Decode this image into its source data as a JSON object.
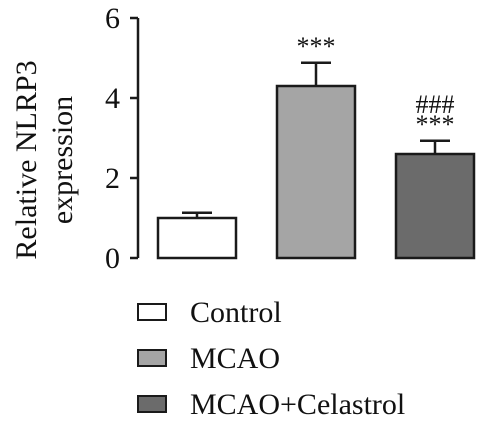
{
  "chart_data": {
    "type": "bar",
    "title": "",
    "ylabel": [
      "Relative NLRP3",
      "expression"
    ],
    "xlabel": "",
    "ylim": [
      0,
      6
    ],
    "yticks": [
      0,
      2,
      4,
      6
    ],
    "grid": false,
    "legend_position": "bottom",
    "series": [
      {
        "name": "Control",
        "value": 1.0,
        "error": 0.13,
        "color": "#ffffff",
        "annotations": []
      },
      {
        "name": "MCAO",
        "value": 4.3,
        "error": 0.58,
        "color": "#a5a5a5",
        "annotations": [
          "***"
        ]
      },
      {
        "name": "MCAO+Celastrol",
        "value": 2.6,
        "error": 0.33,
        "color": "#6b6b6b",
        "annotations": [
          "###",
          "***"
        ]
      }
    ]
  }
}
